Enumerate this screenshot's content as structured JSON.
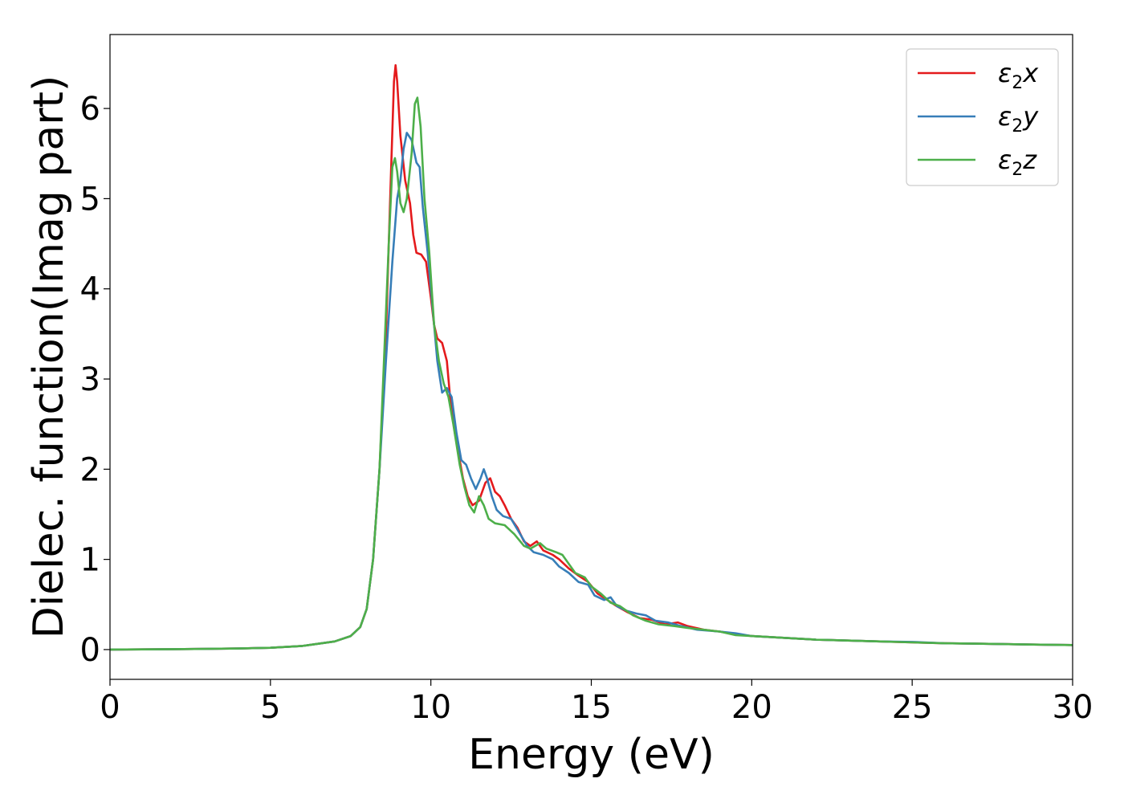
{
  "chart_data": {
    "type": "line",
    "title": "",
    "xlabel": "Energy (eV)",
    "ylabel": "Dielec. function(Imag part)",
    "xlim": [
      0,
      30
    ],
    "ylim": [
      -0.33,
      6.82
    ],
    "xticks": [
      0,
      5,
      10,
      15,
      20,
      25,
      30
    ],
    "yticks": [
      0,
      1,
      2,
      3,
      4,
      5,
      6
    ],
    "grid": false,
    "legend_position": "top-right",
    "series": [
      {
        "name": "ε2x",
        "legend_base": "ε",
        "legend_sub": "2",
        "legend_suffix": "x",
        "color": "#e41a1c",
        "points": [
          [
            0,
            0.0
          ],
          [
            2,
            0.005
          ],
          [
            4,
            0.012
          ],
          [
            5,
            0.02
          ],
          [
            6,
            0.04
          ],
          [
            7,
            0.09
          ],
          [
            7.5,
            0.15
          ],
          [
            7.8,
            0.25
          ],
          [
            8.0,
            0.45
          ],
          [
            8.2,
            1.0
          ],
          [
            8.4,
            2.0
          ],
          [
            8.6,
            3.5
          ],
          [
            8.75,
            5.2
          ],
          [
            8.85,
            6.3
          ],
          [
            8.9,
            6.48
          ],
          [
            8.95,
            6.3
          ],
          [
            9.05,
            5.7
          ],
          [
            9.2,
            5.2
          ],
          [
            9.35,
            4.95
          ],
          [
            9.45,
            4.6
          ],
          [
            9.55,
            4.4
          ],
          [
            9.7,
            4.38
          ],
          [
            9.85,
            4.3
          ],
          [
            10.0,
            3.9
          ],
          [
            10.1,
            3.6
          ],
          [
            10.2,
            3.45
          ],
          [
            10.35,
            3.4
          ],
          [
            10.5,
            3.2
          ],
          [
            10.6,
            2.8
          ],
          [
            10.75,
            2.4
          ],
          [
            10.9,
            2.1
          ],
          [
            11.0,
            1.9
          ],
          [
            11.15,
            1.7
          ],
          [
            11.3,
            1.6
          ],
          [
            11.5,
            1.65
          ],
          [
            11.7,
            1.85
          ],
          [
            11.85,
            1.9
          ],
          [
            12.0,
            1.75
          ],
          [
            12.15,
            1.7
          ],
          [
            12.3,
            1.6
          ],
          [
            12.5,
            1.45
          ],
          [
            12.7,
            1.35
          ],
          [
            12.9,
            1.2
          ],
          [
            13.1,
            1.15
          ],
          [
            13.3,
            1.2
          ],
          [
            13.5,
            1.1
          ],
          [
            13.8,
            1.05
          ],
          [
            14.0,
            1.0
          ],
          [
            14.3,
            0.9
          ],
          [
            14.6,
            0.82
          ],
          [
            14.9,
            0.75
          ],
          [
            15.2,
            0.62
          ],
          [
            15.5,
            0.55
          ],
          [
            15.8,
            0.48
          ],
          [
            16.1,
            0.42
          ],
          [
            16.5,
            0.35
          ],
          [
            16.9,
            0.33
          ],
          [
            17.3,
            0.28
          ],
          [
            17.7,
            0.3
          ],
          [
            18.0,
            0.26
          ],
          [
            18.5,
            0.22
          ],
          [
            19.0,
            0.2
          ],
          [
            19.5,
            0.17
          ],
          [
            20.0,
            0.15
          ],
          [
            20.5,
            0.14
          ],
          [
            21,
            0.13
          ],
          [
            22,
            0.11
          ],
          [
            23,
            0.1
          ],
          [
            24,
            0.09
          ],
          [
            25,
            0.08
          ],
          [
            26,
            0.07
          ],
          [
            27,
            0.065
          ],
          [
            28,
            0.06
          ],
          [
            29,
            0.055
          ],
          [
            30,
            0.05
          ]
        ]
      },
      {
        "name": "ε2y",
        "legend_base": "ε",
        "legend_sub": "2",
        "legend_suffix": "y",
        "color": "#377eb8",
        "points": [
          [
            0,
            0.0
          ],
          [
            2,
            0.005
          ],
          [
            4,
            0.012
          ],
          [
            5,
            0.02
          ],
          [
            6,
            0.04
          ],
          [
            7,
            0.09
          ],
          [
            7.5,
            0.15
          ],
          [
            7.8,
            0.25
          ],
          [
            8.0,
            0.45
          ],
          [
            8.2,
            1.0
          ],
          [
            8.4,
            2.0
          ],
          [
            8.6,
            3.2
          ],
          [
            8.8,
            4.3
          ],
          [
            8.95,
            5.0
          ],
          [
            9.05,
            5.2
          ],
          [
            9.15,
            5.55
          ],
          [
            9.25,
            5.73
          ],
          [
            9.4,
            5.65
          ],
          [
            9.55,
            5.4
          ],
          [
            9.65,
            5.35
          ],
          [
            9.75,
            4.9
          ],
          [
            9.9,
            4.4
          ],
          [
            10.05,
            3.8
          ],
          [
            10.2,
            3.2
          ],
          [
            10.35,
            2.85
          ],
          [
            10.5,
            2.9
          ],
          [
            10.65,
            2.8
          ],
          [
            10.8,
            2.4
          ],
          [
            10.95,
            2.1
          ],
          [
            11.1,
            2.05
          ],
          [
            11.25,
            1.9
          ],
          [
            11.4,
            1.78
          ],
          [
            11.55,
            1.9
          ],
          [
            11.65,
            2.0
          ],
          [
            11.75,
            1.9
          ],
          [
            11.9,
            1.7
          ],
          [
            12.05,
            1.55
          ],
          [
            12.25,
            1.48
          ],
          [
            12.5,
            1.45
          ],
          [
            12.75,
            1.3
          ],
          [
            13.0,
            1.15
          ],
          [
            13.2,
            1.08
          ],
          [
            13.5,
            1.05
          ],
          [
            13.8,
            1.0
          ],
          [
            14.0,
            0.92
          ],
          [
            14.3,
            0.85
          ],
          [
            14.6,
            0.75
          ],
          [
            14.9,
            0.72
          ],
          [
            15.1,
            0.6
          ],
          [
            15.4,
            0.55
          ],
          [
            15.6,
            0.58
          ],
          [
            15.8,
            0.48
          ],
          [
            16.1,
            0.43
          ],
          [
            16.4,
            0.4
          ],
          [
            16.7,
            0.38
          ],
          [
            17.0,
            0.32
          ],
          [
            17.4,
            0.3
          ],
          [
            17.8,
            0.26
          ],
          [
            18.3,
            0.22
          ],
          [
            19.0,
            0.2
          ],
          [
            19.5,
            0.18
          ],
          [
            20.0,
            0.15
          ],
          [
            20.5,
            0.14
          ],
          [
            21,
            0.13
          ],
          [
            22,
            0.11
          ],
          [
            23,
            0.1
          ],
          [
            24,
            0.09
          ],
          [
            25,
            0.085
          ],
          [
            26,
            0.07
          ],
          [
            27,
            0.065
          ],
          [
            28,
            0.06
          ],
          [
            29,
            0.055
          ],
          [
            30,
            0.05
          ]
        ]
      },
      {
        "name": "ε2z",
        "legend_base": "ε",
        "legend_sub": "2",
        "legend_suffix": "z",
        "color": "#4daf4a",
        "points": [
          [
            0,
            0.0
          ],
          [
            2,
            0.005
          ],
          [
            4,
            0.012
          ],
          [
            5,
            0.02
          ],
          [
            6,
            0.04
          ],
          [
            7,
            0.09
          ],
          [
            7.5,
            0.15
          ],
          [
            7.8,
            0.25
          ],
          [
            8.0,
            0.45
          ],
          [
            8.2,
            1.0
          ],
          [
            8.4,
            2.0
          ],
          [
            8.55,
            3.3
          ],
          [
            8.7,
            4.6
          ],
          [
            8.8,
            5.35
          ],
          [
            8.88,
            5.45
          ],
          [
            8.95,
            5.3
          ],
          [
            9.05,
            4.95
          ],
          [
            9.15,
            4.85
          ],
          [
            9.25,
            5.0
          ],
          [
            9.4,
            5.5
          ],
          [
            9.5,
            6.05
          ],
          [
            9.58,
            6.12
          ],
          [
            9.68,
            5.8
          ],
          [
            9.8,
            5.0
          ],
          [
            9.95,
            4.4
          ],
          [
            10.1,
            3.6
          ],
          [
            10.25,
            3.2
          ],
          [
            10.4,
            2.95
          ],
          [
            10.55,
            2.8
          ],
          [
            10.7,
            2.5
          ],
          [
            10.9,
            2.05
          ],
          [
            11.05,
            1.8
          ],
          [
            11.2,
            1.6
          ],
          [
            11.35,
            1.52
          ],
          [
            11.5,
            1.7
          ],
          [
            11.65,
            1.6
          ],
          [
            11.8,
            1.45
          ],
          [
            12.0,
            1.4
          ],
          [
            12.3,
            1.38
          ],
          [
            12.6,
            1.28
          ],
          [
            12.9,
            1.15
          ],
          [
            13.1,
            1.12
          ],
          [
            13.4,
            1.18
          ],
          [
            13.6,
            1.12
          ],
          [
            13.9,
            1.08
          ],
          [
            14.1,
            1.05
          ],
          [
            14.3,
            0.95
          ],
          [
            14.5,
            0.85
          ],
          [
            14.8,
            0.8
          ],
          [
            15.0,
            0.7
          ],
          [
            15.3,
            0.62
          ],
          [
            15.6,
            0.52
          ],
          [
            15.9,
            0.48
          ],
          [
            16.3,
            0.38
          ],
          [
            16.7,
            0.32
          ],
          [
            17.1,
            0.28
          ],
          [
            17.6,
            0.26
          ],
          [
            18.0,
            0.24
          ],
          [
            18.5,
            0.22
          ],
          [
            19.0,
            0.2
          ],
          [
            19.5,
            0.16
          ],
          [
            20.0,
            0.15
          ],
          [
            20.5,
            0.14
          ],
          [
            21,
            0.13
          ],
          [
            22,
            0.11
          ],
          [
            23,
            0.1
          ],
          [
            24,
            0.09
          ],
          [
            25,
            0.08
          ],
          [
            26,
            0.07
          ],
          [
            27,
            0.065
          ],
          [
            28,
            0.06
          ],
          [
            29,
            0.055
          ],
          [
            30,
            0.05
          ]
        ]
      }
    ]
  }
}
